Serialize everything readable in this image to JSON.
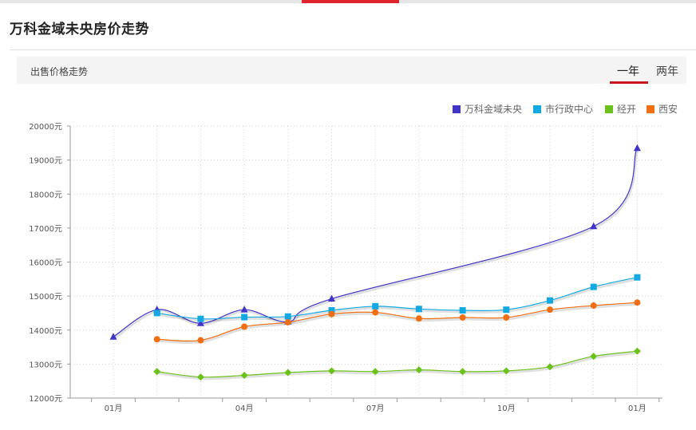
{
  "page_title": "万科金域未央房价走势",
  "subbar_title": "出售价格走势",
  "tabs": [
    {
      "label": "一年",
      "active": true
    },
    {
      "label": "两年",
      "active": false
    }
  ],
  "colors": {
    "accent": "#e0242e",
    "tab_underline": "#c8161d",
    "series": [
      "#3f35c9",
      "#12a9e3",
      "#6ac21a",
      "#f26e13"
    ]
  },
  "chart_data": {
    "type": "line",
    "title": "",
    "xlabel": "",
    "ylabel": "",
    "ylim": [
      12000,
      20000
    ],
    "yticks": [
      "20000元",
      "19000元",
      "18000元",
      "17000元",
      "16000元",
      "15000元",
      "14000元",
      "13000元",
      "12000元"
    ],
    "x_tick_labels": [
      "01月",
      "04月",
      "07月",
      "10月",
      "01月"
    ],
    "x_tick_index": [
      0,
      3,
      6,
      9,
      12
    ],
    "grid": true,
    "legend_position": "top-right",
    "series": [
      {
        "name": "万科金域未央",
        "marker": "triangle",
        "values": [
          13800,
          14600,
          14200,
          14600,
          14250,
          14920,
          null,
          null,
          null,
          null,
          null,
          17050,
          19350
        ]
      },
      {
        "name": "市行政中心",
        "marker": "square",
        "values": [
          null,
          14500,
          14330,
          14380,
          14400,
          14580,
          14700,
          14620,
          14580,
          14600,
          14870,
          15270,
          15550
        ]
      },
      {
        "name": "经开",
        "marker": "diamond",
        "values": [
          null,
          12780,
          12620,
          12670,
          12750,
          12800,
          12780,
          12830,
          12780,
          12800,
          12920,
          13230,
          13380
        ]
      },
      {
        "name": "西安",
        "marker": "circle",
        "values": [
          null,
          13730,
          13700,
          14100,
          14230,
          14470,
          14520,
          14340,
          14370,
          14370,
          14600,
          14720,
          14810
        ]
      }
    ]
  }
}
